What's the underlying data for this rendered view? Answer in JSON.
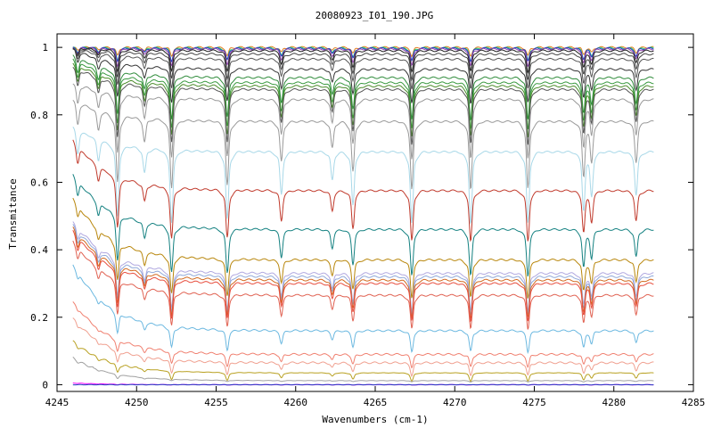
{
  "chart_data": {
    "type": "line",
    "title": "20080923_I01_190.JPG",
    "xlabel": "Wavenumbers (cm-1)",
    "ylabel": "Transmitance",
    "xlim": [
      4245,
      4285
    ],
    "ylim": [
      -0.02,
      1.04
    ],
    "x_ticks": [
      "4245",
      "4250",
      "4255",
      "4260",
      "4265",
      "4270",
      "4275",
      "4280",
      "4285"
    ],
    "y_ticks": [
      "0",
      "0.2",
      "0.4",
      "0.6",
      "0.8",
      "1"
    ],
    "x_range_data": [
      4246,
      4282.5
    ],
    "grid": false,
    "legend": "none",
    "absorption_lines": [
      {
        "x": 4246.3,
        "depth": 0.35
      },
      {
        "x": 4247.6,
        "depth": 0.3
      },
      {
        "x": 4248.8,
        "depth": 1.0
      },
      {
        "x": 4250.5,
        "depth": 0.35
      },
      {
        "x": 4252.2,
        "depth": 1.0
      },
      {
        "x": 4255.7,
        "depth": 0.95
      },
      {
        "x": 4259.1,
        "depth": 0.6
      },
      {
        "x": 4262.3,
        "depth": 0.4
      },
      {
        "x": 4263.6,
        "depth": 0.75
      },
      {
        "x": 4267.3,
        "depth": 1.0
      },
      {
        "x": 4271.0,
        "depth": 1.0
      },
      {
        "x": 4274.6,
        "depth": 1.0
      },
      {
        "x": 4278.1,
        "depth": 0.8
      },
      {
        "x": 4278.6,
        "depth": 0.6
      },
      {
        "x": 4281.4,
        "depth": 0.6
      }
    ],
    "series": [
      {
        "color": "#e67e22",
        "baseline": 1.0,
        "start": 1.0,
        "dip": 0.02
      },
      {
        "color": "#2ecc71",
        "baseline": 0.998,
        "start": 1.0,
        "dip": 0.03
      },
      {
        "color": "#1f3fbf",
        "baseline": 0.997,
        "start": 1.0,
        "dip": 0.03
      },
      {
        "color": "#8e44ad",
        "baseline": 0.995,
        "start": 1.0,
        "dip": 0.04
      },
      {
        "color": "#222222",
        "baseline": 0.99,
        "start": 1.0,
        "dip": 0.05
      },
      {
        "color": "#444444",
        "baseline": 0.98,
        "start": 1.0,
        "dip": 0.06
      },
      {
        "color": "#555555",
        "baseline": 0.965,
        "start": 1.0,
        "dip": 0.07
      },
      {
        "color": "#333333",
        "baseline": 0.935,
        "start": 1.0,
        "dip": 0.08
      },
      {
        "color": "#2e8b3a",
        "baseline": 0.91,
        "start": 0.98,
        "dip": 0.1
      },
      {
        "color": "#3a9a40",
        "baseline": 0.895,
        "start": 0.97,
        "dip": 0.11
      },
      {
        "color": "#4b8c2a",
        "baseline": 0.885,
        "start": 0.96,
        "dip": 0.12
      },
      {
        "color": "#555555",
        "baseline": 0.875,
        "start": 0.95,
        "dip": 0.13
      },
      {
        "color": "#999999",
        "baseline": 0.845,
        "start": 0.9,
        "dip": 0.14
      },
      {
        "color": "#999999",
        "baseline": 0.78,
        "start": 0.85,
        "dip": 0.16
      },
      {
        "color": "#a8d8e8",
        "baseline": 0.69,
        "start": 0.77,
        "dip": 0.17
      },
      {
        "color": "#c0392b",
        "baseline": 0.575,
        "start": 0.73,
        "dip": 0.12
      },
      {
        "color": "#138080",
        "baseline": 0.46,
        "start": 0.63,
        "dip": 0.11
      },
      {
        "color": "#b8860b",
        "baseline": 0.37,
        "start": 0.56,
        "dip": 0.09
      },
      {
        "color": "#b0a8e0",
        "baseline": 0.33,
        "start": 0.49,
        "dip": 0.09
      },
      {
        "color": "#8fa8d8",
        "baseline": 0.32,
        "start": 0.48,
        "dip": 0.09
      },
      {
        "color": "#d2691e",
        "baseline": 0.31,
        "start": 0.47,
        "dip": 0.09
      },
      {
        "color": "#e74c3c",
        "baseline": 0.3,
        "start": 0.46,
        "dip": 0.09
      },
      {
        "color": "#e06050",
        "baseline": 0.265,
        "start": 0.43,
        "dip": 0.08
      },
      {
        "color": "#6bb8e0",
        "baseline": 0.16,
        "start": 0.36,
        "dip": 0.05
      },
      {
        "color": "#f08070",
        "baseline": 0.09,
        "start": 0.25,
        "dip": 0.03
      },
      {
        "color": "#f0a090",
        "baseline": 0.065,
        "start": 0.2,
        "dip": 0.03
      },
      {
        "color": "#b8a020",
        "baseline": 0.035,
        "start": 0.13,
        "dip": 0.02
      },
      {
        "color": "#a0a0a0",
        "baseline": 0.012,
        "start": 0.08,
        "dip": 0.01
      },
      {
        "color": "#ff00ff",
        "baseline": 0.0,
        "start": 0.005,
        "dip": 0.003
      },
      {
        "color": "#1f3fbf",
        "baseline": 0.0,
        "start": 0.0,
        "dip": 0.002
      }
    ]
  }
}
